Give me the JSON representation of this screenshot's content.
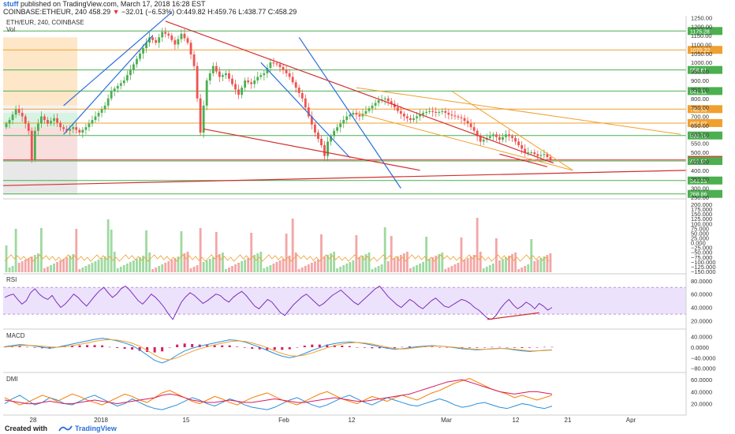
{
  "header": {
    "user": "stuff",
    "published": "published on TradingView.com, March 17, 2018 16:28 EST",
    "symbol_line_prefix": "COINBASE:ETHEUR, 240",
    "last": "458.29",
    "change_arrow": "▼",
    "change": "−32.01 (−6.53%)",
    "ohlc": "O:449.82 H:459.76 L:438.77 C:458.29"
  },
  "footer": {
    "created_with": "Created with",
    "brand": "TradingView"
  },
  "chart_data": [
    {
      "type": "candlestick",
      "pane": "price",
      "title": "ETH/EUR, 240, COINBASE",
      "volume_label": "Vol",
      "y_ticks": [
        "1250.00",
        "1200.00",
        "1150.00",
        "1100.00",
        "1050.00",
        "1000.00",
        "950.00",
        "900.00",
        "850.00",
        "800.00",
        "750.00",
        "700.00",
        "650.00",
        "600.00",
        "550.00",
        "500.00",
        "450.00",
        "400.00",
        "350.00",
        "300.00",
        "250.00"
      ],
      "y_range": [
        250,
        1260
      ],
      "horizontal_levels": [
        {
          "value": 1175.28,
          "label": "1175.28",
          "color": "#4caf50"
        },
        {
          "value": 1070.22,
          "label": "1070.22",
          "color": "#f0a030"
        },
        {
          "value": 958.61,
          "label": "958.61",
          "color": "#4caf50"
        },
        {
          "value": 841.11,
          "label": "841.11",
          "color": "#4caf50"
        },
        {
          "value": 740.55,
          "label": "740.55",
          "color": "#f0a030"
        },
        {
          "value": 663.02,
          "label": "663.02",
          "color": "#f0a030"
        },
        {
          "value": 593.76,
          "label": "593.76",
          "color": "#4caf50"
        },
        {
          "value": 458.29,
          "label": "458.29",
          "color": "#e53935"
        },
        {
          "value": 452.07,
          "label": "452.07",
          "color": "#4caf50"
        },
        {
          "value": 343.29,
          "label": "343.29",
          "color": "#4caf50"
        },
        {
          "value": 268.86,
          "label": "268.86",
          "color": "#4caf50"
        }
      ],
      "last_price": 458.29,
      "price_path": [
        [
          0,
          640
        ],
        [
          2,
          680
        ],
        [
          4,
          740
        ],
        [
          6,
          700
        ],
        [
          8,
          620
        ],
        [
          9,
          460
        ],
        [
          10,
          620
        ],
        [
          12,
          700
        ],
        [
          14,
          660
        ],
        [
          16,
          690
        ],
        [
          18,
          640
        ],
        [
          20,
          620
        ],
        [
          22,
          640
        ],
        [
          24,
          610
        ],
        [
          26,
          640
        ],
        [
          28,
          680
        ],
        [
          30,
          720
        ],
        [
          32,
          760
        ],
        [
          34,
          840
        ],
        [
          36,
          870
        ],
        [
          38,
          900
        ],
        [
          40,
          960
        ],
        [
          42,
          1020
        ],
        [
          44,
          1080
        ],
        [
          46,
          1140
        ],
        [
          48,
          1110
        ],
        [
          50,
          1170
        ],
        [
          52,
          1150
        ],
        [
          54,
          1100
        ],
        [
          56,
          1160
        ],
        [
          58,
          1110
        ],
        [
          60,
          980
        ],
        [
          61,
          800
        ],
        [
          62,
          610
        ],
        [
          63,
          760
        ],
        [
          64,
          900
        ],
        [
          66,
          980
        ],
        [
          68,
          920
        ],
        [
          70,
          940
        ],
        [
          72,
          880
        ],
        [
          74,
          820
        ],
        [
          76,
          900
        ],
        [
          78,
          880
        ],
        [
          80,
          920
        ],
        [
          82,
          940
        ],
        [
          84,
          1000
        ],
        [
          86,
          990
        ],
        [
          88,
          960
        ],
        [
          90,
          920
        ],
        [
          92,
          860
        ],
        [
          94,
          800
        ],
        [
          96,
          700
        ],
        [
          98,
          610
        ],
        [
          100,
          540
        ],
        [
          101,
          480
        ],
        [
          102,
          560
        ],
        [
          104,
          620
        ],
        [
          106,
          660
        ],
        [
          108,
          700
        ],
        [
          110,
          720
        ],
        [
          112,
          700
        ],
        [
          114,
          730
        ],
        [
          116,
          760
        ],
        [
          118,
          790
        ],
        [
          120,
          800
        ],
        [
          122,
          770
        ],
        [
          124,
          730
        ],
        [
          126,
          700
        ],
        [
          128,
          680
        ],
        [
          130,
          700
        ],
        [
          132,
          720
        ],
        [
          134,
          730
        ],
        [
          136,
          720
        ],
        [
          138,
          730
        ],
        [
          140,
          710
        ],
        [
          142,
          700
        ],
        [
          144,
          690
        ],
        [
          146,
          660
        ],
        [
          148,
          620
        ],
        [
          150,
          560
        ],
        [
          152,
          580
        ],
        [
          154,
          600
        ],
        [
          156,
          570
        ],
        [
          158,
          600
        ],
        [
          160,
          580
        ],
        [
          162,
          540
        ],
        [
          164,
          500
        ],
        [
          166,
          500
        ],
        [
          168,
          480
        ],
        [
          170,
          490
        ],
        [
          172,
          458
        ]
      ],
      "candle_count": 172,
      "xlim_days": [
        0,
        258
      ]
    },
    {
      "type": "bar",
      "pane": "volume",
      "y_ticks": [
        "200.000",
        "175.000",
        "150.000",
        "125.000",
        "100.000",
        "75.000",
        "50.000",
        "25.000",
        "0.000",
        "−25.000",
        "−50.000",
        "−75.000",
        "−100.000",
        "−125.000",
        "−150.000"
      ]
    },
    {
      "type": "line",
      "pane": "rsi",
      "title": "RSI",
      "y_ticks": [
        "80.0000",
        "60.0000",
        "40.0000",
        "20.0000"
      ],
      "y_range": [
        10,
        88
      ],
      "band": [
        30,
        70
      ],
      "values": [
        55,
        58,
        60,
        52,
        45,
        50,
        62,
        68,
        60,
        55,
        52,
        58,
        48,
        40,
        45,
        52,
        60,
        55,
        48,
        42,
        50,
        58,
        65,
        70,
        62,
        55,
        60,
        68,
        72,
        66,
        58,
        50,
        45,
        52,
        60,
        55,
        48,
        40,
        30,
        22,
        35,
        48,
        56,
        62,
        58,
        52,
        46,
        50,
        55,
        60,
        58,
        52,
        48,
        55,
        60,
        64,
        58,
        50,
        42,
        38,
        45,
        52,
        48,
        40,
        32,
        28,
        36,
        44,
        50,
        56,
        60,
        54,
        48,
        42,
        46,
        52,
        58,
        62,
        66,
        60,
        54,
        48,
        44,
        50,
        56,
        62,
        68,
        72,
        64,
        56,
        50,
        44,
        40,
        46,
        52,
        48,
        42,
        38,
        44,
        50,
        54,
        48,
        42,
        40,
        44,
        48,
        52,
        50,
        46,
        40,
        36,
        30,
        24,
        22,
        28,
        38,
        46,
        52,
        44,
        38,
        42,
        48,
        44,
        38,
        46,
        42,
        36,
        40
      ]
    },
    {
      "type": "line",
      "pane": "macd",
      "title": "MACD",
      "y_ticks": [
        "40.0000",
        "0.0000",
        "−40.0000",
        "−80.0000"
      ],
      "y_range": [
        -90,
        60
      ],
      "macd": [
        2,
        6,
        10,
        8,
        4,
        0,
        -4,
        0,
        6,
        12,
        18,
        24,
        30,
        34,
        30,
        24,
        16,
        6,
        -10,
        -30,
        -50,
        -60,
        -48,
        -30,
        -14,
        -4,
        4,
        10,
        16,
        22,
        28,
        26,
        20,
        10,
        0,
        -12,
        -24,
        -34,
        -40,
        -34,
        -24,
        -12,
        -2,
        8,
        14,
        18,
        20,
        18,
        14,
        8,
        2,
        -4,
        -8,
        -6,
        -2,
        2,
        4,
        6,
        4,
        2,
        -2,
        -6,
        -8,
        -10,
        -8,
        -6,
        -4,
        -6,
        -10,
        -14,
        -16,
        -14,
        -12,
        -10
      ],
      "signal": [
        0,
        3,
        6,
        7,
        6,
        4,
        1,
        0,
        2,
        6,
        11,
        16,
        22,
        27,
        29,
        27,
        22,
        15,
        4,
        -12,
        -30,
        -44,
        -48,
        -40,
        -28,
        -16,
        -6,
        2,
        9,
        15,
        21,
        24,
        22,
        16,
        8,
        -2,
        -14,
        -24,
        -32,
        -34,
        -30,
        -22,
        -12,
        -2,
        6,
        12,
        16,
        18,
        16,
        12,
        6,
        0,
        -5,
        -7,
        -5,
        -1,
        2,
        4,
        4,
        2,
        0,
        -3,
        -6,
        -8,
        -8,
        -7,
        -5,
        -5,
        -8,
        -11,
        -14,
        -14,
        -13,
        -11
      ]
    },
    {
      "type": "line",
      "pane": "dmi",
      "title": "DMI",
      "y_ticks": [
        "60.0000",
        "40.0000",
        "20.0000"
      ],
      "y_range": [
        5,
        68
      ],
      "plus_di": [
        20,
        28,
        34,
        26,
        18,
        22,
        30,
        26,
        20,
        18,
        24,
        30,
        34,
        28,
        22,
        16,
        20,
        28,
        22,
        16,
        12,
        10,
        14,
        18,
        24,
        30,
        26,
        20,
        16,
        22,
        28,
        24,
        18,
        14,
        12,
        10,
        14,
        20,
        26,
        30,
        24,
        18,
        14,
        18,
        24,
        30,
        34,
        28,
        22,
        18,
        24,
        30,
        26,
        22,
        18,
        16,
        20,
        24,
        28,
        24,
        18,
        14,
        16,
        20,
        22,
        18,
        14,
        12,
        16,
        20,
        18,
        14,
        12,
        16
      ],
      "minus_di": [
        30,
        24,
        18,
        22,
        28,
        34,
        30,
        24,
        30,
        36,
        32,
        26,
        22,
        18,
        24,
        30,
        36,
        32,
        26,
        22,
        30,
        38,
        42,
        36,
        30,
        24,
        20,
        26,
        32,
        28,
        22,
        18,
        24,
        30,
        34,
        38,
        32,
        26,
        22,
        18,
        24,
        30,
        36,
        40,
        34,
        28,
        24,
        20,
        26,
        32,
        28,
        24,
        30,
        34,
        30,
        26,
        32,
        38,
        42,
        48,
        54,
        58,
        62,
        56,
        50,
        44,
        40,
        36,
        30,
        34,
        30,
        26,
        30,
        34
      ],
      "adx": [
        26,
        24,
        22,
        20,
        20,
        22,
        24,
        22,
        20,
        20,
        22,
        24,
        26,
        24,
        22,
        20,
        22,
        24,
        26,
        28,
        30,
        34,
        36,
        34,
        30,
        26,
        24,
        22,
        22,
        24,
        26,
        24,
        22,
        22,
        24,
        26,
        28,
        26,
        24,
        22,
        22,
        24,
        26,
        28,
        30,
        28,
        26,
        24,
        24,
        26,
        28,
        30,
        32,
        34,
        36,
        40,
        44,
        48,
        52,
        56,
        58,
        60,
        56,
        52,
        48,
        44,
        40,
        38,
        36,
        38,
        40,
        40,
        38,
        36
      ]
    }
  ],
  "x_ticks": [
    "28",
    "2018",
    "15",
    "Feb",
    "12",
    "Mar",
    "12",
    "21",
    "Apr"
  ]
}
